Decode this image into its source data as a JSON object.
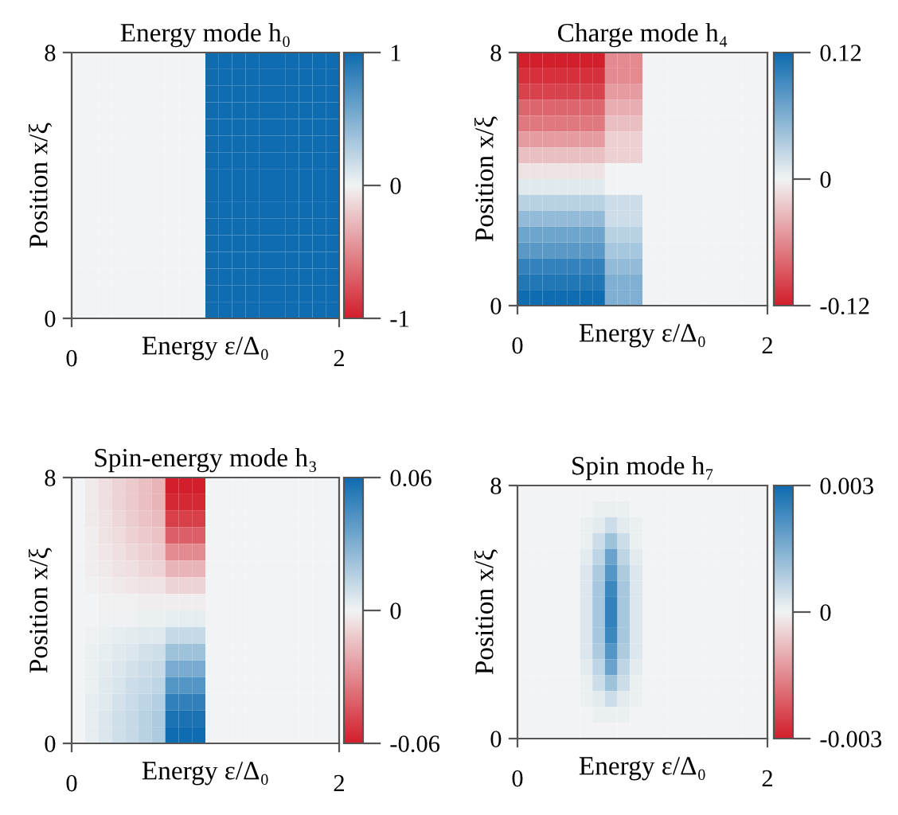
{
  "chart_data": [
    {
      "type": "heatmap",
      "title": "Energy mode h₀",
      "xlabel": "Energy ε/Δ₀",
      "ylabel": "Position x/ξ",
      "x": [
        0.05,
        0.15,
        0.25,
        0.35,
        0.45,
        0.55,
        0.65,
        0.75,
        0.85,
        0.95,
        1.05,
        1.15,
        1.25,
        1.35,
        1.45,
        1.55,
        1.65,
        1.75,
        1.85,
        1.95
      ],
      "y": [
        7.75,
        7.25,
        6.75,
        6.25,
        5.75,
        5.25,
        4.75,
        4.25,
        3.75,
        3.25,
        2.75,
        2.25,
        1.75,
        1.25,
        0.75,
        0.25
      ],
      "xlim": [
        0,
        2
      ],
      "ylim": [
        0,
        8
      ],
      "xticks": [
        0,
        2
      ],
      "yticks": [
        0,
        8
      ],
      "clim": [
        -1,
        1
      ],
      "cticks": [
        {
          "value": -1,
          "label": "-1"
        },
        0,
        1
      ],
      "cells": [
        [
          0,
          0,
          0,
          0,
          0,
          0,
          0,
          0,
          0,
          0,
          1,
          1,
          1,
          1,
          1,
          1,
          1,
          1,
          1,
          1
        ],
        [
          0,
          0,
          0,
          0,
          0,
          0,
          0,
          0,
          0,
          0,
          1,
          1,
          1,
          1,
          1,
          1,
          1,
          1,
          1,
          1
        ],
        [
          0,
          0,
          0,
          0,
          0,
          0,
          0,
          0,
          0,
          0,
          1,
          1,
          1,
          1,
          1,
          1,
          1,
          1,
          1,
          1
        ],
        [
          0,
          0,
          0,
          0,
          0,
          0,
          0,
          0,
          0,
          0,
          1,
          1,
          1,
          1,
          1,
          1,
          1,
          1,
          1,
          1
        ],
        [
          0,
          0,
          0,
          0,
          0,
          0,
          0,
          0,
          0,
          0,
          1,
          1,
          1,
          1,
          1,
          1,
          1,
          1,
          1,
          1
        ],
        [
          0,
          0,
          0,
          0,
          0,
          0,
          0,
          0,
          0,
          0,
          1,
          1,
          1,
          1,
          1,
          1,
          1,
          1,
          1,
          1
        ],
        [
          0,
          0,
          0,
          0,
          0,
          0,
          0,
          0,
          0,
          0,
          1,
          1,
          1,
          1,
          1,
          1,
          1,
          1,
          1,
          1
        ],
        [
          0,
          0,
          0,
          0,
          0,
          0,
          0,
          0,
          0,
          0,
          1,
          1,
          1,
          1,
          1,
          1,
          1,
          1,
          1,
          1
        ],
        [
          0,
          0,
          0,
          0,
          0,
          0,
          0,
          0,
          0,
          0,
          1,
          1,
          1,
          1,
          1,
          1,
          1,
          1,
          1,
          1
        ],
        [
          0,
          0,
          0,
          0,
          0,
          0,
          0,
          0,
          0,
          0,
          1,
          1,
          1,
          1,
          1,
          1,
          1,
          1,
          1,
          1
        ],
        [
          0,
          0,
          0,
          0,
          0,
          0,
          0,
          0,
          0,
          0,
          1,
          1,
          1,
          1,
          1,
          1,
          1,
          1,
          1,
          1
        ],
        [
          0,
          0,
          0,
          0,
          0,
          0,
          0,
          0,
          0,
          0,
          1,
          1,
          1,
          1,
          1,
          1,
          1,
          1,
          1,
          1
        ],
        [
          0,
          0,
          0,
          0,
          0,
          0,
          0,
          0,
          0,
          0,
          1,
          1,
          1,
          1,
          1,
          1,
          1,
          1,
          1,
          1
        ],
        [
          0,
          0,
          0,
          0,
          0,
          0,
          0,
          0,
          0,
          0,
          1,
          1,
          1,
          1,
          1,
          1,
          1,
          1,
          1,
          1
        ],
        [
          0,
          0,
          0,
          0,
          0,
          0,
          0,
          0,
          0,
          0,
          1,
          1,
          1,
          1,
          1,
          1,
          1,
          1,
          1,
          1
        ],
        [
          0,
          0,
          0,
          0,
          0,
          0,
          0,
          0,
          0,
          0,
          1,
          1,
          1,
          1,
          1,
          1,
          1,
          1,
          1,
          1
        ]
      ]
    },
    {
      "type": "heatmap",
      "title": "Charge mode h₄",
      "xlabel": "Energy ε/Δ₀",
      "ylabel": "Position x/ξ",
      "x": [
        0.05,
        0.15,
        0.25,
        0.35,
        0.45,
        0.55,
        0.65,
        0.75,
        0.85,
        0.95,
        1.05,
        1.15,
        1.25,
        1.35,
        1.45,
        1.55,
        1.65,
        1.75,
        1.85,
        1.95
      ],
      "y": [
        7.75,
        7.25,
        6.75,
        6.25,
        5.75,
        5.25,
        4.75,
        4.25,
        3.75,
        3.25,
        2.75,
        2.25,
        1.75,
        1.25,
        0.75,
        0.25
      ],
      "xlim": [
        0,
        2
      ],
      "ylim": [
        0,
        8
      ],
      "xticks": [
        0,
        2
      ],
      "yticks": [
        0,
        8
      ],
      "clim": [
        -0.12,
        0.12
      ],
      "cticks": [
        {
          "value": -0.12,
          "label": "-0.12"
        },
        0,
        0.12
      ],
      "cells": [
        [
          -0.12,
          -0.12,
          -0.12,
          -0.12,
          -0.12,
          -0.12,
          -0.12,
          -0.06,
          -0.06,
          -0.06,
          0,
          0,
          0,
          0,
          0,
          0,
          0,
          0,
          0,
          0
        ],
        [
          -0.11,
          -0.11,
          -0.11,
          -0.11,
          -0.11,
          -0.11,
          -0.11,
          -0.06,
          -0.06,
          -0.06,
          0,
          0,
          0,
          0,
          0,
          0,
          0,
          0,
          0,
          0
        ],
        [
          -0.1,
          -0.1,
          -0.1,
          -0.1,
          -0.1,
          -0.1,
          -0.1,
          -0.05,
          -0.05,
          -0.05,
          0,
          0,
          0,
          0,
          0,
          0,
          0,
          0,
          0,
          0
        ],
        [
          -0.08,
          -0.08,
          -0.08,
          -0.08,
          -0.08,
          -0.08,
          -0.08,
          -0.04,
          -0.04,
          -0.04,
          0,
          0,
          0,
          0,
          0,
          0,
          0,
          0,
          0,
          0
        ],
        [
          -0.07,
          -0.07,
          -0.07,
          -0.07,
          -0.07,
          -0.07,
          -0.07,
          -0.03,
          -0.03,
          -0.03,
          0,
          0,
          0,
          0,
          0,
          0,
          0,
          0,
          0,
          0
        ],
        [
          -0.05,
          -0.05,
          -0.05,
          -0.05,
          -0.05,
          -0.05,
          -0.05,
          -0.02,
          -0.02,
          -0.02,
          0,
          0,
          0,
          0,
          0,
          0,
          0,
          0,
          0,
          0
        ],
        [
          -0.03,
          -0.03,
          -0.03,
          -0.03,
          -0.03,
          -0.03,
          -0.03,
          -0.02,
          -0.02,
          -0.02,
          0,
          0,
          0,
          0,
          0,
          0,
          0,
          0,
          0,
          0
        ],
        [
          -0.01,
          -0.01,
          -0.01,
          -0.01,
          -0.01,
          -0.01,
          -0.01,
          0,
          0,
          0,
          0,
          0,
          0,
          0,
          0,
          0,
          0,
          0,
          0,
          0
        ],
        [
          0.01,
          0.01,
          0.01,
          0.01,
          0.01,
          0.01,
          0.01,
          0,
          0,
          0,
          0,
          0,
          0,
          0,
          0,
          0,
          0,
          0,
          0,
          0
        ],
        [
          0.03,
          0.03,
          0.03,
          0.03,
          0.03,
          0.03,
          0.03,
          0.02,
          0.02,
          0.02,
          0,
          0,
          0,
          0,
          0,
          0,
          0,
          0,
          0,
          0
        ],
        [
          0.05,
          0.05,
          0.05,
          0.05,
          0.05,
          0.05,
          0.05,
          0.02,
          0.02,
          0.02,
          0,
          0,
          0,
          0,
          0,
          0,
          0,
          0,
          0,
          0
        ],
        [
          0.07,
          0.07,
          0.07,
          0.07,
          0.07,
          0.07,
          0.07,
          0.03,
          0.03,
          0.03,
          0,
          0,
          0,
          0,
          0,
          0,
          0,
          0,
          0,
          0
        ],
        [
          0.08,
          0.08,
          0.08,
          0.08,
          0.08,
          0.08,
          0.08,
          0.04,
          0.04,
          0.04,
          0,
          0,
          0,
          0,
          0,
          0,
          0,
          0,
          0,
          0
        ],
        [
          0.1,
          0.1,
          0.1,
          0.1,
          0.1,
          0.1,
          0.1,
          0.05,
          0.05,
          0.05,
          0,
          0,
          0,
          0,
          0,
          0,
          0,
          0,
          0,
          0
        ],
        [
          0.11,
          0.11,
          0.11,
          0.11,
          0.11,
          0.11,
          0.11,
          0.06,
          0.06,
          0.06,
          0,
          0,
          0,
          0,
          0,
          0,
          0,
          0,
          0,
          0
        ],
        [
          0.12,
          0.12,
          0.12,
          0.12,
          0.12,
          0.12,
          0.12,
          0.06,
          0.06,
          0.06,
          0,
          0,
          0,
          0,
          0,
          0,
          0,
          0,
          0,
          0
        ]
      ]
    },
    {
      "type": "heatmap",
      "title": "Spin-energy mode h₃",
      "xlabel": "Energy ε/Δ₀",
      "ylabel": "Position x/ξ",
      "x": [
        0.05,
        0.15,
        0.25,
        0.35,
        0.45,
        0.55,
        0.65,
        0.75,
        0.85,
        0.95,
        1.05,
        1.15,
        1.25,
        1.35,
        1.45,
        1.55,
        1.65,
        1.75,
        1.85,
        1.95
      ],
      "y": [
        7.75,
        7.25,
        6.75,
        6.25,
        5.75,
        5.25,
        4.75,
        4.25,
        3.75,
        3.25,
        2.75,
        2.25,
        1.75,
        1.25,
        0.75,
        0.25
      ],
      "xlim": [
        0,
        2
      ],
      "ylim": [
        0,
        8
      ],
      "xticks": [
        0,
        2
      ],
      "yticks": [
        0,
        8
      ],
      "clim": [
        -0.06,
        0.06
      ],
      "cticks": [
        {
          "value": -0.06,
          "label": "-0.06"
        },
        0,
        0.06
      ],
      "cells": [
        [
          0,
          -0.003,
          -0.006,
          -0.009,
          -0.012,
          -0.015,
          -0.018,
          -0.06,
          -0.06,
          -0.06,
          0,
          0,
          0,
          0,
          0,
          0,
          0,
          0,
          0,
          0
        ],
        [
          0,
          -0.003,
          -0.006,
          -0.009,
          -0.012,
          -0.015,
          -0.018,
          -0.057,
          -0.057,
          -0.057,
          0,
          0,
          0,
          0,
          0,
          0,
          0,
          0,
          0,
          0
        ],
        [
          0,
          -0.003,
          -0.005,
          -0.008,
          -0.011,
          -0.014,
          -0.016,
          -0.051,
          -0.051,
          -0.051,
          0,
          0,
          0,
          0,
          0,
          0,
          0,
          0,
          0,
          0
        ],
        [
          0,
          -0.002,
          -0.005,
          -0.007,
          -0.01,
          -0.012,
          -0.014,
          -0.042,
          -0.042,
          -0.042,
          0,
          0,
          0,
          0,
          0,
          0,
          0,
          0,
          0,
          0
        ],
        [
          0,
          -0.002,
          -0.004,
          -0.006,
          -0.008,
          -0.01,
          -0.012,
          -0.03,
          -0.03,
          -0.03,
          0,
          0,
          0,
          0,
          0,
          0,
          0,
          0,
          0,
          0
        ],
        [
          0,
          -0.002,
          -0.003,
          -0.005,
          -0.006,
          -0.008,
          -0.009,
          -0.018,
          -0.018,
          -0.018,
          0,
          0,
          0,
          0,
          0,
          0,
          0,
          0,
          0,
          0
        ],
        [
          0,
          -0.001,
          -0.002,
          -0.003,
          -0.004,
          -0.005,
          -0.005,
          -0.009,
          -0.009,
          -0.009,
          0,
          0,
          0,
          0,
          0,
          0,
          0,
          0,
          0,
          0
        ],
        [
          0,
          0,
          -0.001,
          -0.001,
          -0.001,
          -0.002,
          -0.002,
          -0.002,
          -0.002,
          -0.002,
          0,
          0,
          0,
          0,
          0,
          0,
          0,
          0,
          0,
          0
        ],
        [
          0,
          0,
          0.001,
          0.001,
          0.001,
          0.002,
          0.002,
          0.003,
          0.003,
          0.003,
          0,
          0,
          0,
          0,
          0,
          0,
          0,
          0,
          0,
          0
        ],
        [
          0,
          0.001,
          0.002,
          0.003,
          0.004,
          0.005,
          0.005,
          0.012,
          0.012,
          0.012,
          0,
          0,
          0,
          0,
          0,
          0,
          0,
          0,
          0,
          0
        ],
        [
          0,
          0.002,
          0.003,
          0.005,
          0.006,
          0.008,
          0.009,
          0.022,
          0.022,
          0.022,
          0,
          0,
          0,
          0,
          0,
          0,
          0,
          0,
          0,
          0
        ],
        [
          0,
          0.002,
          0.004,
          0.006,
          0.008,
          0.01,
          0.012,
          0.032,
          0.032,
          0.032,
          0,
          0,
          0,
          0,
          0,
          0,
          0,
          0,
          0,
          0
        ],
        [
          0,
          0.002,
          0.005,
          0.007,
          0.01,
          0.012,
          0.014,
          0.042,
          0.042,
          0.042,
          0,
          0,
          0,
          0,
          0,
          0,
          0,
          0,
          0,
          0
        ],
        [
          0,
          0.003,
          0.005,
          0.008,
          0.011,
          0.014,
          0.016,
          0.051,
          0.051,
          0.051,
          0,
          0,
          0,
          0,
          0,
          0,
          0,
          0,
          0,
          0
        ],
        [
          0,
          0.003,
          0.006,
          0.009,
          0.012,
          0.015,
          0.018,
          0.057,
          0.057,
          0.057,
          0,
          0,
          0,
          0,
          0,
          0,
          0,
          0,
          0,
          0
        ],
        [
          0,
          0.003,
          0.006,
          0.009,
          0.012,
          0.015,
          0.018,
          0.06,
          0.06,
          0.06,
          0,
          0,
          0,
          0,
          0,
          0,
          0,
          0,
          0,
          0
        ]
      ]
    },
    {
      "type": "heatmap",
      "title": "Spin mode h₇",
      "xlabel": "Energy ε/Δ₀",
      "ylabel": "Position x/ξ",
      "x": [
        0.05,
        0.15,
        0.25,
        0.35,
        0.45,
        0.55,
        0.65,
        0.75,
        0.85,
        0.95,
        1.05,
        1.15,
        1.25,
        1.35,
        1.45,
        1.55,
        1.65,
        1.75,
        1.85,
        1.95
      ],
      "y": [
        7.75,
        7.25,
        6.75,
        6.25,
        5.75,
        5.25,
        4.75,
        4.25,
        3.75,
        3.25,
        2.75,
        2.25,
        1.75,
        1.25,
        0.75,
        0.25
      ],
      "xlim": [
        0,
        2
      ],
      "ylim": [
        0,
        8
      ],
      "xticks": [
        0,
        2
      ],
      "yticks": [
        0,
        8
      ],
      "clim": [
        -0.003,
        0.003
      ],
      "cticks": [
        {
          "value": -0.003,
          "label": "-0.003"
        },
        0,
        0.003
      ],
      "cells": [
        [
          0,
          0,
          0,
          0,
          0,
          0,
          0,
          0,
          0,
          0,
          0,
          0,
          0,
          0,
          0,
          0,
          0,
          0,
          0,
          0
        ],
        [
          0,
          0,
          0,
          0,
          0,
          0,
          0.0001,
          0.0001,
          0.0001,
          0,
          0,
          0,
          0,
          0,
          0,
          0,
          0,
          0,
          0,
          0
        ],
        [
          0,
          0,
          0,
          0,
          0,
          0.0001,
          0.0002,
          0.0005,
          0.0002,
          0.0001,
          0,
          0,
          0,
          0,
          0,
          0,
          0,
          0,
          0,
          0
        ],
        [
          0,
          0,
          0,
          0,
          0,
          0.0001,
          0.0005,
          0.0011,
          0.0005,
          0.0001,
          0,
          0,
          0,
          0,
          0,
          0,
          0,
          0,
          0,
          0
        ],
        [
          0,
          0,
          0,
          0,
          0,
          0.0002,
          0.0007,
          0.0018,
          0.0007,
          0.0002,
          0,
          0,
          0,
          0,
          0,
          0,
          0,
          0,
          0,
          0
        ],
        [
          0,
          0,
          0,
          0,
          0,
          0.0003,
          0.0009,
          0.0021,
          0.0009,
          0.0003,
          0,
          0,
          0,
          0,
          0,
          0,
          0,
          0,
          0,
          0
        ],
        [
          0,
          0,
          0,
          0,
          0,
          0.0003,
          0.001,
          0.0024,
          0.001,
          0.0003,
          0,
          0,
          0,
          0,
          0,
          0,
          0,
          0,
          0,
          0
        ],
        [
          0,
          0,
          0,
          0,
          0,
          0.0003,
          0.001,
          0.0025,
          0.001,
          0.0003,
          0,
          0,
          0,
          0,
          0,
          0,
          0,
          0,
          0,
          0
        ],
        [
          0,
          0,
          0,
          0,
          0,
          0.0003,
          0.001,
          0.0025,
          0.001,
          0.0003,
          0,
          0,
          0,
          0,
          0,
          0,
          0,
          0,
          0,
          0
        ],
        [
          0,
          0,
          0,
          0,
          0,
          0.0003,
          0.001,
          0.0024,
          0.001,
          0.0003,
          0,
          0,
          0,
          0,
          0,
          0,
          0,
          0,
          0,
          0
        ],
        [
          0,
          0,
          0,
          0,
          0,
          0.0003,
          0.0009,
          0.0021,
          0.0009,
          0.0003,
          0,
          0,
          0,
          0,
          0,
          0,
          0,
          0,
          0,
          0
        ],
        [
          0,
          0,
          0,
          0,
          0,
          0.0002,
          0.0007,
          0.0018,
          0.0007,
          0.0002,
          0,
          0,
          0,
          0,
          0,
          0,
          0,
          0,
          0,
          0
        ],
        [
          0,
          0,
          0,
          0,
          0,
          0.0001,
          0.0005,
          0.0011,
          0.0005,
          0.0001,
          0,
          0,
          0,
          0,
          0,
          0,
          0,
          0,
          0,
          0
        ],
        [
          0,
          0,
          0,
          0,
          0,
          0.0001,
          0.0002,
          0.0005,
          0.0002,
          0.0001,
          0,
          0,
          0,
          0,
          0,
          0,
          0,
          0,
          0,
          0
        ],
        [
          0,
          0,
          0,
          0,
          0,
          0,
          0.0001,
          0.0001,
          0.0001,
          0,
          0,
          0,
          0,
          0,
          0,
          0,
          0,
          0,
          0,
          0
        ],
        [
          0,
          0,
          0,
          0,
          0,
          0,
          0,
          0,
          0,
          0,
          0,
          0,
          0,
          0,
          0,
          0,
          0,
          0,
          0,
          0
        ]
      ]
    }
  ]
}
